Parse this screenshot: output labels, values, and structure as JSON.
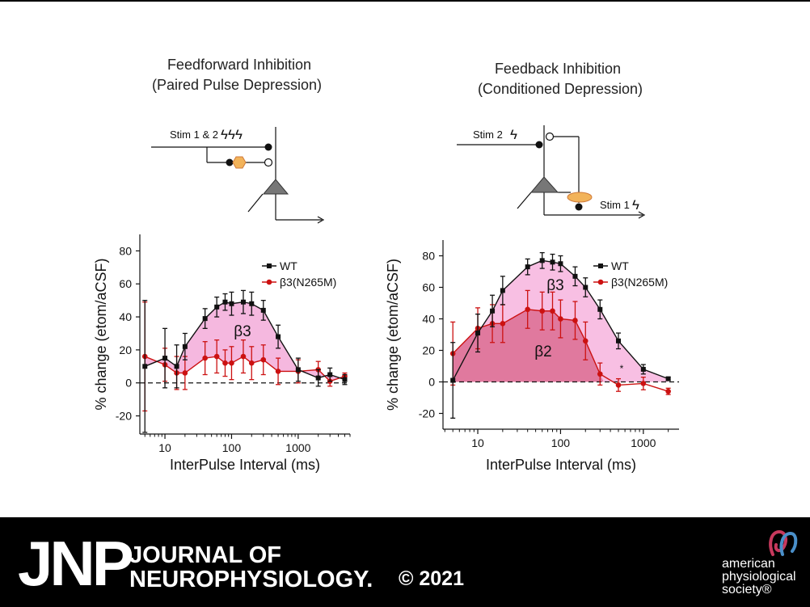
{
  "panels": [
    {
      "title_line1": "Feedforward Inhibition",
      "title_line2": "(Paired Pulse Depression)"
    },
    {
      "title_line1": "Feedback Inhibition",
      "title_line2": "(Conditioned Depression)"
    }
  ],
  "schematics": {
    "left_stim": "Stim 1 & 2",
    "right_stim_a": "Stim 2",
    "right_stim_b": "Stim 1"
  },
  "chart_data": [
    {
      "type": "line",
      "xscale": "log",
      "xlabel": "InterPulse Interval (ms)",
      "ylabel": "% change (etom/aCSF)",
      "xlim": [
        4.2,
        6000
      ],
      "ylim": [
        -31,
        90
      ],
      "yticks": [
        -20,
        0,
        20,
        40,
        60,
        80
      ],
      "xticks": [
        10,
        100,
        1000
      ],
      "xtick_labels": [
        "10",
        "100",
        "1000"
      ],
      "legend_position": "top-right",
      "shaded_label": "β3",
      "colors": {
        "WT": "#111111",
        "mutant": "#cc1111",
        "shade": "#f5b8df"
      },
      "series": [
        {
          "name": "WT",
          "x": [
            5,
            10,
            15,
            20,
            40,
            60,
            80,
            100,
            150,
            200,
            300,
            500,
            1000,
            2000,
            3000,
            5000
          ],
          "y": [
            10,
            15,
            10,
            22,
            39,
            46,
            49,
            48,
            49,
            48,
            44,
            28,
            8,
            3,
            5,
            2
          ],
          "err": [
            40,
            18,
            13,
            8,
            6,
            6,
            5,
            7,
            7,
            7,
            6,
            7,
            7,
            5,
            4,
            3
          ]
        },
        {
          "name": "β3(N265M)",
          "x": [
            5,
            10,
            15,
            20,
            40,
            60,
            80,
            100,
            150,
            200,
            300,
            500,
            1000,
            2000,
            3000,
            5000
          ],
          "y": [
            16,
            11,
            6,
            6,
            15,
            16,
            12,
            12,
            16,
            12,
            14,
            7,
            7,
            8,
            1,
            4
          ],
          "err": [
            33,
            10,
            10,
            10,
            10,
            10,
            8,
            10,
            10,
            10,
            9,
            8,
            7,
            5,
            3,
            2
          ]
        }
      ]
    },
    {
      "type": "line",
      "xscale": "log",
      "xlabel": "InterPulse Interval (ms)",
      "ylabel": "% change (etom/aCSF)",
      "xlim": [
        3.8,
        2700
      ],
      "ylim": [
        -30,
        90
      ],
      "yticks": [
        -20,
        0,
        20,
        40,
        60,
        80
      ],
      "xticks": [
        10,
        100,
        1000
      ],
      "xtick_labels": [
        "10",
        "100",
        "1000"
      ],
      "legend_position": "top-right",
      "shaded_labels": [
        "β3",
        "β2"
      ],
      "annotation": "*",
      "colors": {
        "WT": "#111111",
        "mutant": "#cc1111",
        "shade_light": "#f8bfe3",
        "shade_dark": "#e0799e"
      },
      "series": [
        {
          "name": "WT",
          "x": [
            5,
            10,
            15,
            20,
            40,
            60,
            80,
            100,
            150,
            200,
            300,
            500,
            1000,
            2000
          ],
          "y": [
            1,
            31,
            45,
            58,
            73,
            77,
            76,
            75,
            67,
            60,
            46,
            26,
            8,
            2
          ],
          "err": [
            24,
            12,
            10,
            9,
            5,
            5,
            5,
            5,
            6,
            6,
            6,
            5,
            3,
            1
          ]
        },
        {
          "name": "β3(N265M)",
          "x": [
            5,
            10,
            15,
            20,
            40,
            60,
            80,
            100,
            150,
            200,
            300,
            500,
            1000,
            2000
          ],
          "y": [
            18,
            34,
            37,
            37,
            46,
            45,
            45,
            40,
            39,
            26,
            5,
            -2,
            -1,
            -6
          ],
          "err": [
            20,
            13,
            12,
            12,
            12,
            12,
            12,
            12,
            12,
            12,
            7,
            4,
            4,
            2
          ]
        }
      ]
    }
  ],
  "footer": {
    "logo": "JNP",
    "journal_line1": "JOURNAL OF",
    "journal_line2": "NEUROPHYSIOLOGY.",
    "copyright": "© 2021",
    "society_line1": "american",
    "society_line2": "physiological",
    "society_line3": "society®"
  }
}
